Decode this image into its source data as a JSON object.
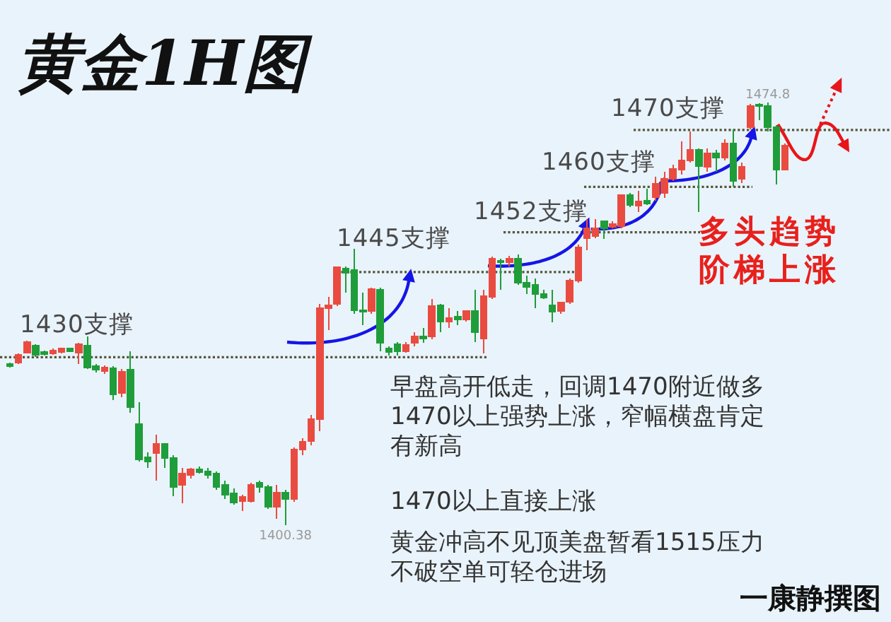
{
  "chart_data": {
    "type": "candlestick",
    "title": "黄金1H图",
    "categories": [
      null,
      null,
      null,
      null,
      null,
      null,
      null,
      null,
      null,
      null,
      null,
      null,
      null,
      null,
      null,
      null,
      null,
      null,
      null,
      null,
      null,
      null,
      null,
      null,
      null,
      null,
      null,
      null,
      null,
      null,
      null,
      null,
      null,
      null,
      null,
      null,
      null,
      null,
      null,
      null,
      null,
      null,
      null,
      null,
      null,
      null,
      null,
      null,
      null,
      null,
      null,
      null,
      null,
      null,
      null,
      null,
      null,
      null,
      null,
      null,
      null,
      null,
      null,
      null,
      null,
      null,
      null,
      null,
      null,
      null,
      null,
      null,
      null,
      null,
      null,
      null,
      null,
      null,
      null,
      null,
      null,
      null,
      null,
      null,
      null,
      null,
      null,
      null,
      null,
      null,
      null
    ],
    "ohlc": [
      [
        1428.8,
        1429.0,
        1428.2,
        1428.4
      ],
      [
        1429.0,
        1430.7,
        1428.8,
        1430.4
      ],
      [
        1430.8,
        1432.9,
        1430.7,
        1432.6
      ],
      [
        1432.1,
        1432.3,
        1430.1,
        1430.4
      ],
      [
        1430.9,
        1431.2,
        1430.3,
        1430.5
      ],
      [
        1430.7,
        1431.5,
        1430.4,
        1431.2
      ],
      [
        1430.9,
        1431.7,
        1430.7,
        1431.5
      ],
      [
        1431.5,
        1431.7,
        1430.9,
        1431.1
      ],
      [
        1430.8,
        1432.5,
        1428.8,
        1432.3
      ],
      [
        1432.1,
        1433.7,
        1427.9,
        1428.2
      ],
      [
        1428.4,
        1428.8,
        1427.3,
        1427.8
      ],
      [
        1427.5,
        1428.6,
        1427.1,
        1428.2
      ],
      [
        1428.0,
        1428.4,
        1422.5,
        1423.5
      ],
      [
        1423.7,
        1427.9,
        1423.0,
        1427.4
      ],
      [
        1427.8,
        1431.1,
        1420.2,
        1421.2
      ],
      [
        1418.2,
        1422.1,
        1411.6,
        1412.0
      ],
      [
        1412.4,
        1413.3,
        1410.5,
        1411.6
      ],
      [
        1413.1,
        1416.4,
        1408.3,
        1414.7
      ],
      [
        1414.7,
        1414.9,
        1410.5,
        1412.2
      ],
      [
        1412.2,
        1412.8,
        1405.5,
        1407.2
      ],
      [
        1407.5,
        1410.5,
        1404.3,
        1409.5
      ],
      [
        1409.3,
        1410.5,
        1408.7,
        1410.3
      ],
      [
        1410.3,
        1410.8,
        1409.5,
        1409.8
      ],
      [
        1409.9,
        1410.5,
        1408.7,
        1409.3
      ],
      [
        1409.5,
        1409.9,
        1406.6,
        1407.2
      ],
      [
        1407.5,
        1408.3,
        1405.0,
        1405.8
      ],
      [
        1406.0,
        1406.9,
        1404.1,
        1404.4
      ],
      [
        1404.7,
        1405.8,
        1402.9,
        1405.4
      ],
      [
        1404.7,
        1407.9,
        1404.4,
        1407.5
      ],
      [
        1407.9,
        1408.3,
        1406.2,
        1407.2
      ],
      [
        1407.2,
        1407.5,
        1403.3,
        1403.7
      ],
      [
        1403.7,
        1407.5,
        1401.6,
        1406.2
      ],
      [
        1406.2,
        1406.6,
        1400.38,
        1405.0
      ],
      [
        1405.0,
        1414.1,
        1404.5,
        1413.7
      ],
      [
        1413.7,
        1415.7,
        1412.8,
        1415.1
      ],
      [
        1415.3,
        1419.9,
        1414.5,
        1419.1
      ],
      [
        1419.1,
        1439.4,
        1417.0,
        1438.6
      ],
      [
        1438.6,
        1440.6,
        1434.8,
        1439.1
      ],
      [
        1439.4,
        1446.0,
        1439.0,
        1445.8
      ],
      [
        1445.6,
        1446.0,
        1441.4,
        1444.8
      ],
      [
        1445.4,
        1449.1,
        1437.7,
        1438.3
      ],
      [
        1438.3,
        1441.4,
        1435.6,
        1438.0
      ],
      [
        1438.1,
        1442.3,
        1437.7,
        1442.0
      ],
      [
        1441.9,
        1442.3,
        1431.1,
        1432.5
      ],
      [
        1431.5,
        1431.9,
        1430.3,
        1430.9
      ],
      [
        1432.3,
        1432.7,
        1430.3,
        1431.1
      ],
      [
        1431.1,
        1432.7,
        1430.8,
        1432.2
      ],
      [
        1432.5,
        1434.4,
        1431.9,
        1433.6
      ],
      [
        1433.6,
        1435.2,
        1432.5,
        1433.3
      ],
      [
        1433.6,
        1440.2,
        1433.2,
        1439.0
      ],
      [
        1439.1,
        1439.4,
        1434.4,
        1436.3
      ],
      [
        1436.3,
        1438.6,
        1435.2,
        1436.9
      ],
      [
        1437.1,
        1438.1,
        1435.6,
        1436.6
      ],
      [
        1436.6,
        1438.3,
        1436.3,
        1438.1
      ],
      [
        1438.1,
        1441.9,
        1432.7,
        1434.4
      ],
      [
        1433.3,
        1441.9,
        1430.7,
        1440.8
      ],
      [
        1440.6,
        1447.7,
        1440.2,
        1447.3
      ],
      [
        1447.0,
        1447.3,
        1441.9,
        1446.8
      ],
      [
        1446.7,
        1447.9,
        1446.0,
        1447.3
      ],
      [
        1447.3,
        1448.1,
        1442.7,
        1443.1
      ],
      [
        1443.1,
        1444.4,
        1441.1,
        1442.4
      ],
      [
        1442.7,
        1443.9,
        1438.6,
        1441.1
      ],
      [
        1441.1,
        1441.9,
        1440.2,
        1440.5
      ],
      [
        1439.1,
        1441.9,
        1436.1,
        1438.0
      ],
      [
        1438.1,
        1439.8,
        1437.7,
        1439.6
      ],
      [
        1439.8,
        1443.9,
        1439.4,
        1443.5
      ],
      [
        1443.5,
        1449.8,
        1443.1,
        1449.3
      ],
      [
        1451.0,
        1454.3,
        1448.9,
        1452.7
      ],
      [
        1451.3,
        1454.3,
        1451.0,
        1452.7
      ],
      [
        1453.9,
        1453.9,
        1450.8,
        1452.7
      ],
      [
        1452.9,
        1453.9,
        1452.7,
        1453.5
      ],
      [
        1453.1,
        1458.7,
        1452.7,
        1458.5
      ],
      [
        1458.5,
        1458.9,
        1456.4,
        1456.8
      ],
      [
        1456.7,
        1459.3,
        1455.6,
        1457.4
      ],
      [
        1457.6,
        1459.7,
        1456.8,
        1457.1
      ],
      [
        1458.2,
        1461.8,
        1457.6,
        1460.5
      ],
      [
        1458.9,
        1462.6,
        1458.1,
        1461.4
      ],
      [
        1461.4,
        1463.9,
        1461.0,
        1463.2
      ],
      [
        1463.0,
        1468.0,
        1462.2,
        1464.7
      ],
      [
        1464.7,
        1469.7,
        1464.3,
        1466.5
      ],
      [
        1466.5,
        1466.8,
        1455.6,
        1463.7
      ],
      [
        1463.5,
        1466.8,
        1462.6,
        1465.9
      ],
      [
        1465.9,
        1466.5,
        1462.6,
        1465.1
      ],
      [
        1465.1,
        1468.4,
        1464.7,
        1467.6
      ],
      [
        1467.6,
        1470.1,
        1460.1,
        1461.0
      ],
      [
        1461.4,
        1464.3,
        1460.7,
        1463.5
      ],
      [
        1470.5,
        1474.6,
        1470.1,
        1474.2
      ],
      [
        1474.5,
        1474.7,
        1471.7,
        1474.2
      ],
      [
        1474.2,
        1474.8,
        1469.7,
        1470.5
      ],
      [
        1470.5,
        1470.9,
        1460.4,
        1463.0
      ],
      [
        1463.0,
        1467.6,
        1462.9,
        1467.2
      ]
    ],
    "colors": [
      "#1f9d3a",
      "#ea4b40",
      "#ea4b40",
      "#1f9d3a",
      "#1f9d3a",
      "#ea4b40",
      "#ea4b40",
      "#1f9d3a",
      "#ea4b40",
      "#1f9d3a",
      "#1f9d3a",
      "#ea4b40",
      "#1f9d3a",
      "#ea4b40",
      "#1f9d3a",
      "#1f9d3a",
      "#1f9d3a",
      "#ea4b40",
      "#1f9d3a",
      "#1f9d3a",
      "#ea4b40",
      "#ea4b40",
      "#1f9d3a",
      "#1f9d3a",
      "#1f9d3a",
      "#1f9d3a",
      "#1f9d3a",
      "#ea4b40",
      "#ea4b40",
      "#1f9d3a",
      "#1f9d3a",
      "#ea4b40",
      "#1f9d3a",
      "#ea4b40",
      "#ea4b40",
      "#ea4b40",
      "#ea4b40",
      "#ea4b40",
      "#ea4b40",
      "#1f9d3a",
      "#1f9d3a",
      "#1f9d3a",
      "#ea4b40",
      "#1f9d3a",
      "#1f9d3a",
      "#1f9d3a",
      "#ea4b40",
      "#ea4b40",
      "#1f9d3a",
      "#ea4b40",
      "#1f9d3a",
      "#ea4b40",
      "#1f9d3a",
      "#ea4b40",
      "#1f9d3a",
      "#ea4b40",
      "#ea4b40",
      "#1f9d3a",
      "#ea4b40",
      "#1f9d3a",
      "#1f9d3a",
      "#1f9d3a",
      "#1f9d3a",
      "#1f9d3a",
      "#ea4b40",
      "#ea4b40",
      "#ea4b40",
      "#ea4b40",
      "#ea4b40",
      "#1f9d3a",
      "#ea4b40",
      "#ea4b40",
      "#1f9d3a",
      "#ea4b40",
      "#1f9d3a",
      "#ea4b40",
      "#ea4b40",
      "#ea4b40",
      "#ea4b40",
      "#ea4b40",
      "#1f9d3a",
      "#ea4b40",
      "#1f9d3a",
      "#ea4b40",
      "#1f9d3a",
      "#ea4b40",
      "#ea4b40",
      "#1f9d3a",
      "#1f9d3a",
      "#1f9d3a",
      "#ea4b40"
    ],
    "ref_lines": [
      {
        "axis": "y",
        "value": 1430,
        "label": "1430支撑",
        "color": "#55553a",
        "line_style": "dotted"
      },
      {
        "axis": "y",
        "value": 1445,
        "label": "1445支撑",
        "color": "#55553a",
        "line_style": "dotted"
      },
      {
        "axis": "y",
        "value": 1452,
        "label": "1452支撑",
        "color": "#55553a",
        "line_style": "dotted"
      },
      {
        "axis": "y",
        "value": 1460,
        "label": "1460支撑",
        "color": "#55553a",
        "line_style": "dotted"
      },
      {
        "axis": "y",
        "value": 1470,
        "label": "1470支撑",
        "color": "#55553a",
        "line_style": "dotted"
      }
    ],
    "annotations": [
      {
        "text": "1474.8",
        "y": 1474.8
      },
      {
        "text": "1400.38",
        "y": 1400.38
      },
      "早盘高开低走，回调1470附近做多1470以上强势上涨，窄幅横盘肯定有新高",
      "1470以上直接上涨",
      "黄金冲高不见顶美盘暂看1515压力不破空单可轻仓进场",
      "多头趋势阶梯上涨",
      "一康静撰图"
    ],
    "tick_labels": false
  }
}
